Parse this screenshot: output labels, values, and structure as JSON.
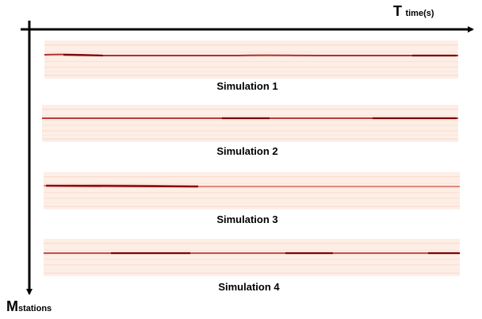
{
  "axes": {
    "time_axis": {
      "symbol": "T",
      "unit": "time(s)"
    },
    "station_axis": {
      "symbol": "M",
      "unit": "stations"
    }
  },
  "panels": [
    {
      "title": "Simulation 1"
    },
    {
      "title": "Simulation 2"
    },
    {
      "title": "Simulation 3"
    },
    {
      "title": "Simulation 4"
    }
  ],
  "colors": {
    "axis": "#000000",
    "panel_background": "#fdeee6",
    "trace_light": "#f6cdbd",
    "trace_dark": "#a01010"
  }
}
